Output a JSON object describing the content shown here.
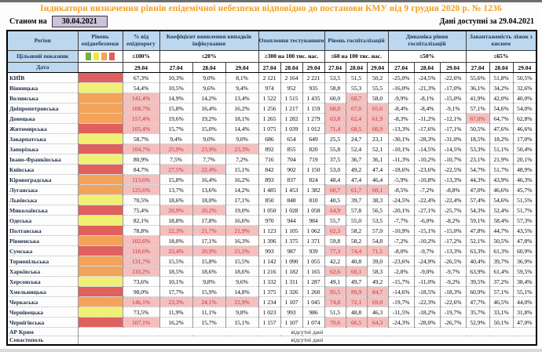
{
  "title": "Індикатори визначення рівнів епідемічної небезпеки відповідно до постанови КМУ від 9 грудня 2020 р. № 1236",
  "as_of": {
    "label": "Станом на",
    "date": "30.04.2021"
  },
  "available": "Дані доступні за 29.04.2021",
  "colors": {
    "title_text": "#F59E1D",
    "header_bg": "#BDD7EE",
    "header_text": "#17375E",
    "highlight_bg": "#F4BFBF",
    "highlight_text": "#C03232",
    "level_red": "#E05F5F",
    "level_orange": "#F3A35A",
    "level_yellow": "#F0F075",
    "as_of_box_bg": "#CCC1DA",
    "legend_squares": [
      "#76B041",
      "#F2E647",
      "#F3A35A",
      "#E05F5F"
    ]
  },
  "table": {
    "region_header": "Регіон",
    "target_header": "Цільовий показник",
    "date_header": "Дата",
    "no_data_text": "відсутні дані",
    "groups": [
      {
        "id": "level",
        "label": "Рівень епіднебезпеки",
        "target": "",
        "cols": 1,
        "legend": true,
        "dates": [
          ""
        ]
      },
      {
        "id": "pct",
        "label": "% від епідпорогу",
        "target": "≤100%",
        "cols": 1,
        "dates": [
          "29.04"
        ]
      },
      {
        "id": "coef",
        "label": "Коефіцієнт виявлення випадків інфікування",
        "target": "≤20%",
        "cols": 3,
        "dates": [
          "27.04",
          "28.04",
          "29.04"
        ]
      },
      {
        "id": "test",
        "label": "Охоплення тестуванням",
        "target": "≥300 на 100 тис. нас.",
        "cols": 3,
        "dates": [
          "27.04",
          "28.04",
          "29.04"
        ]
      },
      {
        "id": "hosp",
        "label": "Рівень госпіталізацій",
        "target": "≤60 на 100 тис. нас.",
        "cols": 3,
        "dates": [
          "27.04",
          "28.04",
          "29.04"
        ]
      },
      {
        "id": "dyn",
        "label": "Динаміка рівня госпіталізацій",
        "target": "≤50%",
        "cols": 3,
        "dates": [
          "27.04",
          "28.04",
          "29.04"
        ]
      },
      {
        "id": "beds",
        "label": "Завантаженість ліжок з киснем",
        "target": "≤65%",
        "cols": 3,
        "dates": [
          "27.04",
          "28.04",
          "29.04"
        ]
      }
    ],
    "regions": [
      {
        "name": "КИЇВ",
        "level": "red",
        "pct": "67,3%",
        "coef": [
          "10,3%",
          "9,0%",
          "8,1%"
        ],
        "test": [
          "2 121",
          "2 164",
          "2 221"
        ],
        "hosp": [
          "53,5",
          "51,5",
          "50,2"
        ],
        "dyn": [
          "-25,0%",
          "-24,5%",
          "-22,6%"
        ],
        "beds": [
          "55,6%",
          "51,8%",
          "50,5%"
        ]
      },
      {
        "name": "Вінницька",
        "level": "yellow",
        "pct": "54,4%",
        "coef": [
          "10,5%",
          "9,6%",
          "9,4%"
        ],
        "test": [
          "974",
          "952",
          "935"
        ],
        "hosp": [
          "58,8",
          "55,3",
          "55,5"
        ],
        "dyn": [
          "-16,0%",
          "-21,3%",
          "-17,0%"
        ],
        "beds": [
          "36,1%",
          "34,2%",
          "32,6%"
        ]
      },
      {
        "name": "Волинська",
        "level": "orange",
        "pct": "141,4%",
        "coef": [
          "14,9%",
          "14,2%",
          "13,4%"
        ],
        "test": [
          "1 522",
          "1 515",
          "1 435"
        ],
        "hosp": [
          "60,0",
          "60,7",
          "58,0"
        ],
        "dyn": [
          "-9,9%",
          "-8,1%",
          "-15,0%"
        ],
        "beds": [
          "41,9%",
          "42,0%",
          "40,0%"
        ]
      },
      {
        "name": "Дніпропетровська",
        "level": "orange",
        "pct": "108,7%",
        "coef": [
          "15,8%",
          "16,4%",
          "16,2%"
        ],
        "test": [
          "1 256",
          "1 217",
          "1 159"
        ],
        "hosp": [
          "68,0",
          "67,0",
          "65,6"
        ],
        "dyn": [
          "-8,4%",
          "-8,4%",
          "-9,1%"
        ],
        "beds": [
          "57,1%",
          "54,6%",
          "54,0%"
        ]
      },
      {
        "name": "Донецька",
        "level": "orange",
        "pct": "157,4%",
        "coef": [
          "19,6%",
          "19,2%",
          "18,1%"
        ],
        "test": [
          "1 265",
          "1 282",
          "1 279"
        ],
        "hosp": [
          "63,8",
          "62,4",
          "61,9"
        ],
        "dyn": [
          "-8,3%",
          "-11,2%",
          "-12,1%"
        ],
        "beds": [
          "67,0%",
          "64,7%",
          "62,8%"
        ]
      },
      {
        "name": "Житомирська",
        "level": "red",
        "pct": "105,4%",
        "coef": [
          "15,7%",
          "15,0%",
          "14,4%"
        ],
        "test": [
          "1 075",
          "1 039",
          "1 012"
        ],
        "hosp": [
          "71,4",
          "68,5",
          "66,9"
        ],
        "dyn": [
          "-13,3%",
          "-17,6%",
          "-17,1%"
        ],
        "beds": [
          "50,5%",
          "47,6%",
          "46,6%"
        ]
      },
      {
        "name": "Закарпатська",
        "level": "yellow",
        "pct": "58,7%",
        "coef": [
          "9,4%",
          "9,0%",
          "9,0%"
        ],
        "test": [
          "686",
          "654",
          "649"
        ],
        "hosp": [
          "25,5",
          "24,7",
          "23,1"
        ],
        "dyn": [
          "-30,1%",
          "-28,3%",
          "-31,0%"
        ],
        "beds": [
          "18,5%",
          "18,2%",
          "17,0%"
        ]
      },
      {
        "name": "Запорізька",
        "level": "red",
        "pct": "104,7%",
        "coef": [
          "25,9%",
          "23,9%",
          "23,3%"
        ],
        "test": [
          "892",
          "855",
          "820"
        ],
        "hosp": [
          "55,8",
          "52,4",
          "52,1"
        ],
        "dyn": [
          "-10,1%",
          "-14,5%",
          "-14,5%"
        ],
        "beds": [
          "53,3%",
          "51,1%",
          "50,4%"
        ]
      },
      {
        "name": "Івано-Франківська",
        "level": "yellow",
        "pct": "80,9%",
        "coef": [
          "7,5%",
          "7,7%",
          "7,2%"
        ],
        "test": [
          "716",
          "704",
          "719"
        ],
        "hosp": [
          "37,5",
          "36,7",
          "36,1"
        ],
        "dyn": [
          "-11,3%",
          "-10,2%",
          "-10,7%"
        ],
        "beds": [
          "23,1%",
          "21,9%",
          "20,1%"
        ]
      },
      {
        "name": "Київська",
        "level": "red",
        "pct": "84,7%",
        "coef": [
          "27,5%",
          "22,4%",
          "15,1%"
        ],
        "test": [
          "842",
          "902",
          "1 150"
        ],
        "hosp": [
          "53,0",
          "49,2",
          "47,4"
        ],
        "dyn": [
          "-18,6%",
          "-23,6%",
          "-22,5%"
        ],
        "beds": [
          "54,7%",
          "51,7%",
          "48,9%"
        ]
      },
      {
        "name": "Кіровоградська",
        "level": "orange",
        "pct": "113,6%",
        "coef": [
          "15,8%",
          "16,4%",
          "16,2%"
        ],
        "test": [
          "893",
          "837",
          "824"
        ],
        "hosp": [
          "48,4",
          "47,4",
          "46,4"
        ],
        "dyn": [
          "-5,9%",
          "-10,8%",
          "-13,3%"
        ],
        "beds": [
          "44,3%",
          "43,9%",
          "46,3%"
        ]
      },
      {
        "name": "Луганська",
        "level": "orange",
        "pct": "125,6%",
        "coef": [
          "13,7%",
          "13,6%",
          "14,2%"
        ],
        "test": [
          "1 485",
          "1 453",
          "1 382"
        ],
        "hosp": [
          "60,7",
          "61,7",
          "60,1"
        ],
        "dyn": [
          "-8,5%",
          "-7,2%",
          "-8,8%"
        ],
        "beds": [
          "47,0%",
          "46,6%",
          "45,7%"
        ]
      },
      {
        "name": "Львівська",
        "level": "yellow",
        "pct": "70,5%",
        "coef": [
          "18,6%",
          "18,0%",
          "17,1%"
        ],
        "test": [
          "850",
          "848",
          "810"
        ],
        "hosp": [
          "40,5",
          "39,7",
          "38,3"
        ],
        "dyn": [
          "-24,5%",
          "-22,4%",
          "-22,4%"
        ],
        "beds": [
          "57,4%",
          "54,6%",
          "51,5%"
        ]
      },
      {
        "name": "Миколаївська",
        "level": "red",
        "pct": "75,4%",
        "coef": [
          "20,9%",
          "20,2%",
          "19,0%"
        ],
        "test": [
          "1 050",
          "1 028",
          "1 058"
        ],
        "hosp": [
          "64,9",
          "57,8",
          "56,5"
        ],
        "dyn": [
          "-20,1%",
          "-27,1%",
          "-25,7%"
        ],
        "beds": [
          "54,3%",
          "52,4%",
          "51,7%"
        ]
      },
      {
        "name": "Одеська",
        "level": "yellow",
        "pct": "82,1%",
        "coef": [
          "18,8%",
          "17,8%",
          "16,6%"
        ],
        "test": [
          "970",
          "944",
          "984"
        ],
        "hosp": [
          "55,7",
          "55,0",
          "53,5"
        ],
        "dyn": [
          "-7,7%",
          "-6,0%",
          "-8,2%"
        ],
        "beds": [
          "59,1%",
          "58,4%",
          "57,3%"
        ]
      },
      {
        "name": "Полтавська",
        "level": "red",
        "pct": "78,8%",
        "coef": [
          "22,3%",
          "21,7%",
          "21,9%"
        ],
        "test": [
          "1 123",
          "1 105",
          "1 062"
        ],
        "hosp": [
          "62,3",
          "58,2",
          "57,0"
        ],
        "dyn": [
          "-10,9%",
          "-15,1%",
          "-15,0%"
        ],
        "beds": [
          "47,8%",
          "44,7%",
          "43,5%"
        ]
      },
      {
        "name": "Рівненська",
        "level": "orange",
        "pct": "102,6%",
        "coef": [
          "18,0%",
          "17,1%",
          "16,3%"
        ],
        "test": [
          "1 396",
          "1 375",
          "1 371"
        ],
        "hosp": [
          "59,8",
          "58,2",
          "54,8"
        ],
        "dyn": [
          "-7,2%",
          "-10,2%",
          "-17,2%"
        ],
        "beds": [
          "52,1%",
          "50,5%",
          "47,8%"
        ]
      },
      {
        "name": "Сумська",
        "level": "red",
        "pct": "118,6%",
        "coef": [
          "23,4%",
          "20,9%",
          "21,5%"
        ],
        "test": [
          "993",
          "987",
          "939"
        ],
        "hosp": [
          "77,3",
          "74,4",
          "71,5"
        ],
        "dyn": [
          "-8,0%",
          "-9,7%",
          "-13,3%"
        ],
        "beds": [
          "63,3%",
          "61,3%",
          "60,9%"
        ]
      },
      {
        "name": "Тернопільська",
        "level": "orange",
        "pct": "131,7%",
        "coef": [
          "15,5%",
          "15,8%",
          "15,5%"
        ],
        "test": [
          "1 142",
          "1 090",
          "1 055"
        ],
        "hosp": [
          "42,2",
          "40,8",
          "39,0"
        ],
        "dyn": [
          "-23,6%",
          "-24,9%",
          "-26,5%"
        ],
        "beds": [
          "40,4%",
          "39,7%",
          "36,9%"
        ]
      },
      {
        "name": "Харківська",
        "level": "orange",
        "pct": "110,2%",
        "coef": [
          "18,5%",
          "18,6%",
          "18,6%"
        ],
        "test": [
          "1 216",
          "1 182",
          "1 165"
        ],
        "hosp": [
          "62,6",
          "60,1",
          "58,3"
        ],
        "dyn": [
          "-2,8%",
          "-9,0%",
          "-9,7%"
        ],
        "beds": [
          "63,9%",
          "61,4%",
          "59,5%"
        ]
      },
      {
        "name": "Херсонська",
        "level": "yellow",
        "pct": "73,6%",
        "coef": [
          "10,1%",
          "9,8%",
          "9,6%"
        ],
        "test": [
          "1 332",
          "1 311",
          "1 287"
        ],
        "hosp": [
          "49,1",
          "49,7",
          "49,2"
        ],
        "dyn": [
          "-15,7%",
          "-11,0%",
          "-9,2%"
        ],
        "beds": [
          "39,5%",
          "37,2%",
          "38,4%"
        ]
      },
      {
        "name": "Хмельницька",
        "level": "red",
        "pct": "98,0%",
        "coef": [
          "17,7%",
          "15,9%",
          "14,8%"
        ],
        "test": [
          "1 375",
          "1 326",
          "1 260"
        ],
        "hosp": [
          "95,5",
          "89,9",
          "84,7"
        ],
        "dyn": [
          "-14,6%",
          "-18,5%",
          "-18,3%"
        ],
        "beds": [
          "60,9%",
          "57,1%",
          "55,1%"
        ]
      },
      {
        "name": "Черкаська",
        "level": "orange",
        "pct": "146,1%",
        "coef": [
          "23,3%",
          "24,1%",
          "22,9%"
        ],
        "test": [
          "1 234",
          "1 107",
          "1 045"
        ],
        "hosp": [
          "74,8",
          "72,1",
          "69,0"
        ],
        "dyn": [
          "-19,7%",
          "-22,3%",
          "-22,6%"
        ],
        "beds": [
          "47,7%",
          "46,5%",
          "44,0%"
        ]
      },
      {
        "name": "Чернівецька",
        "level": "yellow",
        "pct": "73,5%",
        "coef": [
          "11,9%",
          "11,1%",
          "9,8%"
        ],
        "test": [
          "1 023",
          "993",
          "986"
        ],
        "hosp": [
          "51,5",
          "48,8",
          "46,3"
        ],
        "dyn": [
          "-11,5%",
          "-18,2%",
          "-19,7%"
        ],
        "beds": [
          "35,7%",
          "33,1%",
          "31,8%"
        ]
      },
      {
        "name": "Чернігівська",
        "level": "red",
        "pct": "107,1%",
        "coef": [
          "16,2%",
          "15,7%",
          "15,1%"
        ],
        "test": [
          "1 157",
          "1 107",
          "1 074"
        ],
        "hosp": [
          "70,6",
          "66,5",
          "64,3"
        ],
        "dyn": [
          "-24,3%",
          "-28,0%",
          "-26,7%"
        ],
        "beds": [
          "52,9%",
          "50,1%",
          "47,0%"
        ]
      },
      {
        "name": "АР Крим",
        "no_data": true
      },
      {
        "name": "Севастополь",
        "no_data": true
      }
    ]
  }
}
